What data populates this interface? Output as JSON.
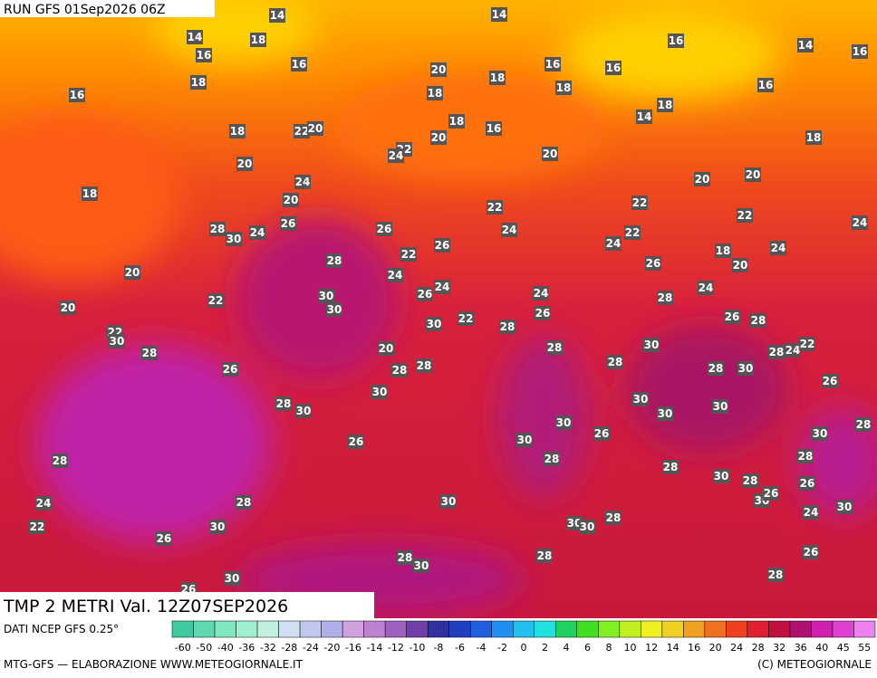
{
  "header": {
    "run": "RUN GFS 01Sep2026 06Z"
  },
  "map_labels": [
    14,
    14,
    14,
    18,
    16,
    16,
    18,
    16,
    20,
    18,
    16,
    16,
    16,
    14,
    16,
    18,
    18,
    16,
    18,
    14,
    18,
    16,
    20,
    18,
    22,
    20,
    18,
    20,
    22,
    24,
    20,
    20,
    20,
    24,
    18,
    20,
    22,
    22,
    22,
    28,
    30,
    24,
    26,
    26,
    24,
    24,
    22,
    24,
    26,
    22,
    18,
    20,
    24,
    28,
    24,
    20,
    22,
    20,
    30,
    30,
    26,
    24,
    24,
    26,
    28,
    24,
    26,
    26,
    28,
    22,
    30,
    30,
    22,
    28,
    28,
    20,
    30,
    28,
    28,
    24,
    22,
    26,
    28,
    28,
    28,
    28,
    30,
    26,
    30,
    28,
    30,
    30,
    30,
    30,
    30,
    26,
    30,
    28,
    26,
    30,
    28,
    28,
    28,
    28,
    30,
    28,
    26,
    30,
    26,
    24,
    30,
    28,
    22,
    30,
    30,
    30,
    28,
    24,
    30,
    26,
    28,
    26,
    28,
    30,
    30,
    28,
    26
  ],
  "footer": {
    "title": "TMP 2 METRI Val. 12Z07SEP2026",
    "source": "DATI NCEP GFS 0.25°",
    "credit": "MTG-GFS — ELABORAZIONE WWW.METEOGIORNALE.IT",
    "copyright": "(C) METEOGIORNALE"
  },
  "colorbar": {
    "labels": [
      -60,
      -50,
      -40,
      -36,
      -32,
      -28,
      -24,
      -20,
      -16,
      -14,
      -12,
      -10,
      -8,
      -6,
      -4,
      -2,
      0,
      2,
      4,
      6,
      8,
      10,
      12,
      14,
      16,
      20,
      24,
      28,
      32,
      36,
      40,
      45,
      55
    ]
  }
}
